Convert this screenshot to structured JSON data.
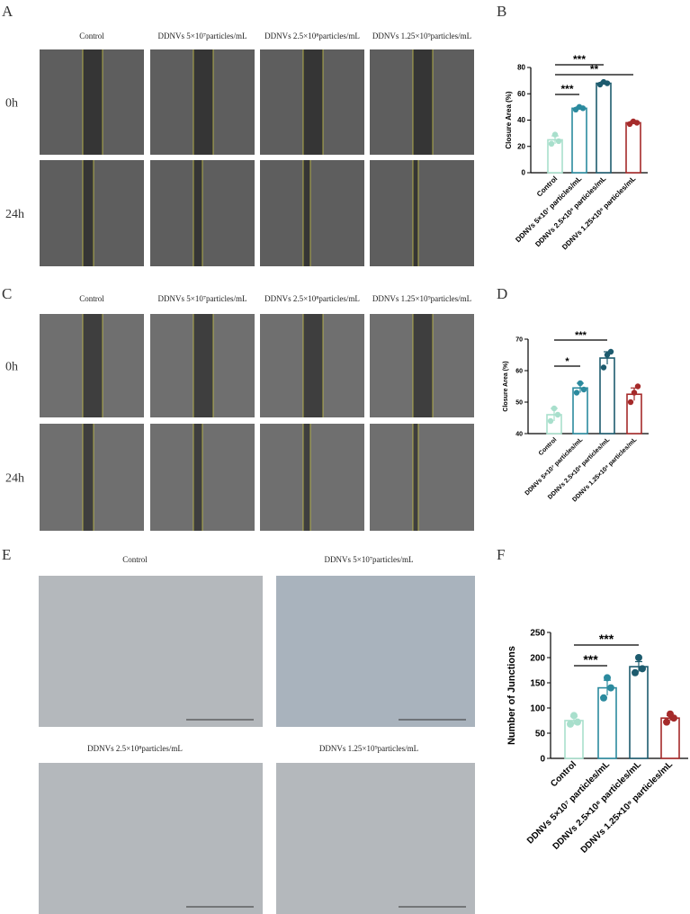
{
  "panels": {
    "labels": [
      "A",
      "B",
      "C",
      "D",
      "E",
      "F"
    ]
  },
  "panel_a": {
    "columns": [
      "Control",
      "DDNVs 5×10⁷particles/mL",
      "DDNVs 2.5×10⁸particles/mL",
      "DDNVs 1.25×10⁹particles/mL"
    ],
    "rows": [
      "0h",
      "24h"
    ]
  },
  "panel_c": {
    "columns": [
      "Control",
      "DDNVs 5×10⁷particles/mL",
      "DDNVs 2.5×10⁸particles/mL",
      "DDNVs 1.25×10⁹particles/mL"
    ],
    "rows": [
      "0h",
      "24h"
    ]
  },
  "panel_e": {
    "captions": [
      "Control",
      "DDNVs 5×10⁷particles/mL",
      "DDNVs 2.5×10⁸particles/mL",
      "DDNVs 1.25×10⁹particles/mL"
    ]
  },
  "chart_data": [
    {
      "type": "bar",
      "y_label": "Closure Area (%)",
      "categories": [
        "Control",
        "DDNVs 5×10⁷ particles/mL",
        "DDNVs 2.5×10⁸ particles/mL",
        "DDNVs 1.25×10⁹ particles/mL"
      ],
      "values": [
        25,
        49,
        68,
        38
      ],
      "errors": [
        3,
        1,
        1,
        1
      ],
      "points": [
        [
          22,
          29,
          24
        ],
        [
          48,
          50,
          49
        ],
        [
          67,
          69,
          68
        ],
        [
          37,
          39,
          38
        ]
      ],
      "colors": [
        "#a8dfcc",
        "#2b8a9e",
        "#1d5b6e",
        "#a52a2a"
      ],
      "ylim": [
        0,
        80
      ],
      "yticks": [
        0,
        20,
        40,
        60,
        80
      ],
      "annotations": [
        {
          "text": "***",
          "from": 0,
          "to": 1
        },
        {
          "text": "***",
          "from": 0,
          "to": 2
        },
        {
          "text": "**",
          "from": 0,
          "to": 3
        }
      ]
    },
    {
      "type": "bar",
      "y_label": "Closure Area  (%)",
      "categories": [
        "Control",
        "DDNVs 5×10⁷ particles/mL",
        "DDNVs 2.5×10⁸ particles/mL",
        "DDNVs 1.25×10⁹ particles/mL"
      ],
      "values": [
        46,
        54.5,
        64,
        52.5
      ],
      "errors": [
        2,
        1.5,
        2,
        2
      ],
      "points": [
        [
          44,
          48,
          46
        ],
        [
          53,
          56,
          54
        ],
        [
          61,
          65,
          66
        ],
        [
          50,
          53,
          55
        ]
      ],
      "colors": [
        "#a8dfcc",
        "#2b8a9e",
        "#1d5b6e",
        "#a52a2a"
      ],
      "ylim": [
        40,
        70
      ],
      "yticks": [
        40,
        50,
        60,
        70
      ],
      "annotations": [
        {
          "text": "*",
          "from": 0,
          "to": 1
        },
        {
          "text": "***",
          "from": 0,
          "to": 2
        }
      ]
    },
    {
      "type": "bar",
      "y_label": "Number of Junctions",
      "categories": [
        "Control",
        "DDNVs 5×10⁷ particles/mL",
        "DDNVs 2.5×10⁸ particles/mL",
        "DDNVs 1.25×10⁹ particles/mL"
      ],
      "values": [
        75,
        140,
        182,
        80
      ],
      "errors": [
        8,
        15,
        10,
        5
      ],
      "points": [
        [
          68,
          85,
          72
        ],
        [
          120,
          160,
          140
        ],
        [
          170,
          200,
          178
        ],
        [
          72,
          88,
          80
        ]
      ],
      "colors": [
        "#a8dfcc",
        "#2b8a9e",
        "#1d5b6e",
        "#a52a2a"
      ],
      "ylim": [
        0,
        250
      ],
      "yticks": [
        0,
        50,
        100,
        150,
        200,
        250
      ],
      "annotations": [
        {
          "text": "***",
          "from": 0,
          "to": 1
        },
        {
          "text": "***",
          "from": 0,
          "to": 2
        }
      ]
    }
  ]
}
